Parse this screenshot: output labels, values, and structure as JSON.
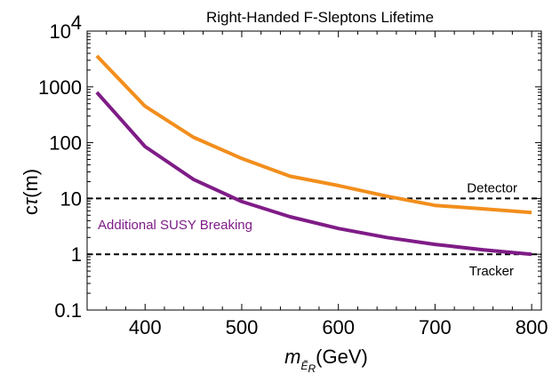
{
  "chart_data": {
    "type": "line",
    "title": "Right-Handed F-Sleptons Lifetime",
    "xlabel": {
      "italic": "m",
      "sub_main": "Ẽ",
      "sub_small": "R",
      "unit": "(GeV)"
    },
    "ylabel": {
      "c": "c",
      "tau": "τ",
      "unit": "(m)"
    },
    "xlim": [
      340,
      810
    ],
    "ylim": [
      0.1,
      10000
    ],
    "yscale": "log",
    "x_ticks": [
      400,
      500,
      600,
      700,
      800
    ],
    "x_tick_labels": [
      "400",
      "500",
      "600",
      "700",
      "800"
    ],
    "y_ticks": [
      0.1,
      1,
      10,
      100,
      1000
    ],
    "y_tick_labels": [
      "0.1",
      "1",
      "10",
      "100",
      "1000"
    ],
    "y_top_tick": {
      "value": 10000,
      "base": "10",
      "exp": "4"
    },
    "series": [
      {
        "color": "#f28e1c",
        "x": [
          350,
          400,
          450,
          500,
          550,
          600,
          650,
          700,
          750,
          800
        ],
        "y": [
          3600,
          450,
          125,
          52,
          25,
          17,
          11,
          7.5,
          6.5,
          5.6
        ]
      },
      {
        "color": "#7f1c87",
        "x": [
          350,
          400,
          450,
          500,
          550,
          600,
          650,
          700,
          750,
          800
        ],
        "y": [
          800,
          85,
          22,
          8.8,
          4.7,
          2.9,
          2.0,
          1.5,
          1.2,
          1.0
        ]
      }
    ],
    "reference_lines": [
      {
        "y": 10,
        "label": "Detector"
      },
      {
        "y": 1,
        "label": "Tracker"
      }
    ],
    "annotations": [
      {
        "text": "Additional SUSY Breaking",
        "color": "#7f1c87"
      }
    ]
  }
}
